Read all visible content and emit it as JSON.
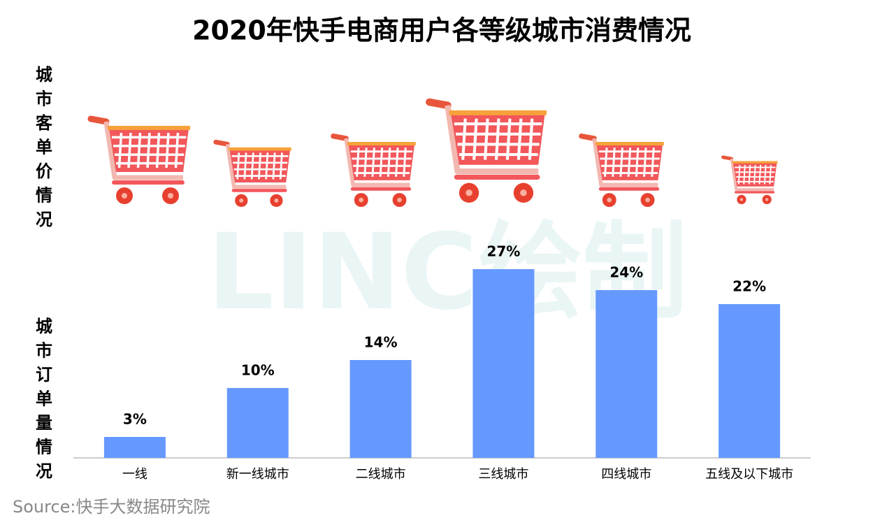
{
  "chart_data": {
    "type": "bar",
    "title": "2020年快手电商用户各等级城市消费情况",
    "top_label": "城市客单价情况",
    "bottom_label": "城市订单量情况",
    "watermark": "LINC绘制",
    "source": "Source:快手大数据研究院",
    "categories": [
      "一线",
      "新一线城市",
      "二线城市",
      "三线城市",
      "四线城市",
      "五线及以下城市"
    ],
    "values": [
      3,
      10,
      14,
      27,
      24,
      22
    ],
    "value_labels": [
      "3%",
      "10%",
      "14%",
      "27%",
      "24%",
      "22%"
    ],
    "color": "#6699ff"
  }
}
